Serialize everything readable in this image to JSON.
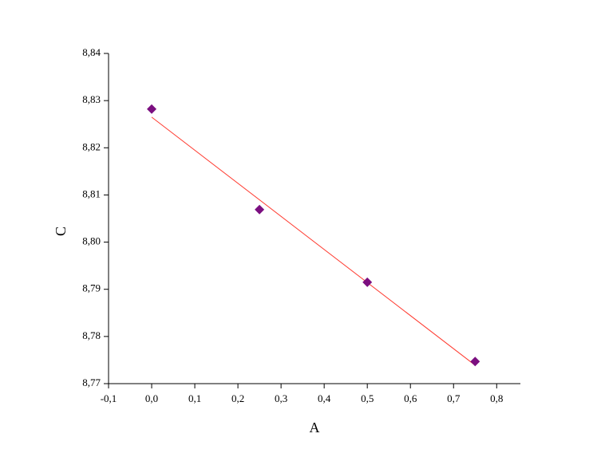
{
  "chart_data": {
    "type": "scatter",
    "x_label": "A",
    "y_label": "C",
    "x": [
      0,
      0.25,
      0.5,
      0.75
    ],
    "series": [
      {
        "color": "#7b0f80",
        "values": [
          8.8282,
          8.8069,
          8.7915,
          8.7747
        ]
      }
    ],
    "fit_line": {
      "x": [
        0,
        0.75
      ],
      "values": [
        8.8265,
        8.7739
      ],
      "color": "#ff3b30"
    },
    "xlim": [
      -0.1,
      0.855
    ],
    "ylim": [
      8.77,
      8.84
    ],
    "xticks": [
      {
        "value": -0.1,
        "label": "-0,1"
      },
      {
        "value": 0,
        "label": "0,0"
      },
      {
        "value": 0.1,
        "label": "0,1"
      },
      {
        "value": 0.2,
        "label": "0,2"
      },
      {
        "value": 0.3,
        "label": "0,3"
      },
      {
        "value": 0.4,
        "label": "0,4"
      },
      {
        "value": 0.5,
        "label": "0,5"
      },
      {
        "value": 0.6,
        "label": "0,6"
      },
      {
        "value": 0.7,
        "label": "0,7"
      },
      {
        "value": 0.8,
        "label": "0,8"
      }
    ],
    "yticks": [
      {
        "value": 8.77,
        "label": "8,77"
      },
      {
        "value": 8.78,
        "label": "8,78"
      },
      {
        "value": 8.79,
        "label": "8,79"
      },
      {
        "value": 8.8,
        "label": "8,80"
      },
      {
        "value": 8.81,
        "label": "8,81"
      },
      {
        "value": 8.82,
        "label": "8,82"
      },
      {
        "value": 8.83,
        "label": "8,83"
      },
      {
        "value": 8.84,
        "label": "8,84"
      }
    ]
  }
}
